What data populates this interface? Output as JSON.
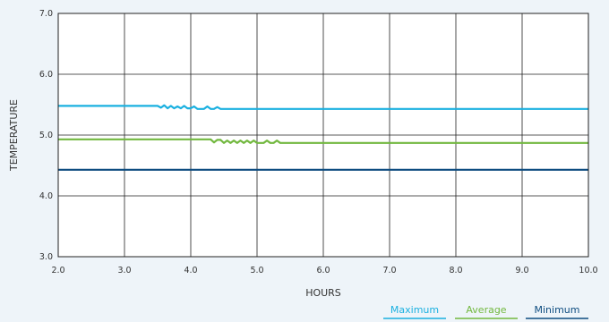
{
  "chart_data": {
    "type": "line",
    "xlabel": "HOURS",
    "ylabel": "TEMPERATURE",
    "xlim": [
      2.0,
      10.0
    ],
    "ylim": [
      3.0,
      7.0
    ],
    "x_ticks": [
      "2.0",
      "3.0",
      "4.0",
      "5.0",
      "6.0",
      "7.0",
      "8.0",
      "9.0",
      "10.0"
    ],
    "y_ticks": [
      "3.0",
      "4.0",
      "5.0",
      "6.0",
      "7.0"
    ],
    "grid": true,
    "legend_position": "bottom-right",
    "series": [
      {
        "name": "Maximum",
        "color": "#1ab0e0",
        "x": [
          2.0,
          3.5,
          3.55,
          3.6,
          3.65,
          3.7,
          3.75,
          3.8,
          3.85,
          3.9,
          3.95,
          4.0,
          4.05,
          4.1,
          4.15,
          4.2,
          4.25,
          4.3,
          4.35,
          4.4,
          4.45,
          4.5,
          10.0
        ],
        "y": [
          5.48,
          5.48,
          5.45,
          5.49,
          5.44,
          5.48,
          5.44,
          5.47,
          5.44,
          5.48,
          5.44,
          5.44,
          5.47,
          5.43,
          5.43,
          5.43,
          5.47,
          5.43,
          5.43,
          5.46,
          5.43,
          5.43,
          5.43
        ]
      },
      {
        "name": "Average",
        "color": "#72b83f",
        "x": [
          2.0,
          4.3,
          4.35,
          4.4,
          4.45,
          4.5,
          4.55,
          4.6,
          4.65,
          4.7,
          4.75,
          4.8,
          4.85,
          4.9,
          4.95,
          5.0,
          5.05,
          5.1,
          5.15,
          5.2,
          5.25,
          5.3,
          5.35,
          10.0
        ],
        "y": [
          4.93,
          4.93,
          4.88,
          4.92,
          4.92,
          4.87,
          4.91,
          4.87,
          4.91,
          4.87,
          4.91,
          4.87,
          4.91,
          4.87,
          4.91,
          4.87,
          4.87,
          4.87,
          4.91,
          4.87,
          4.87,
          4.91,
          4.87,
          4.87
        ]
      },
      {
        "name": "Minimum",
        "color": "#0e4c80",
        "x": [
          2.0,
          10.0
        ],
        "y": [
          4.43,
          4.43
        ]
      }
    ]
  }
}
